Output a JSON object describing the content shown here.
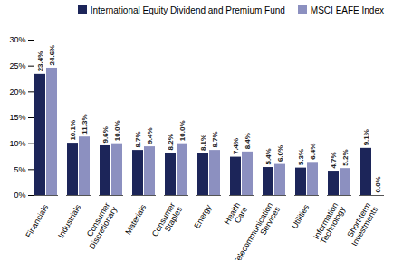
{
  "chart_data": {
    "type": "bar",
    "categories": [
      "Financials",
      "Industrials",
      "Consumer Discretionary",
      "Materials",
      "Consumer Staples",
      "Energy",
      "Health Care",
      "Telecommunication Services",
      "Utilities",
      "Information Technology",
      "Short-term Investments"
    ],
    "series": [
      {
        "name": "International Equity Dividend and Premium Fund",
        "color": "#1c2559",
        "values": [
          23.4,
          10.1,
          9.6,
          8.7,
          8.2,
          8.1,
          7.4,
          5.4,
          5.3,
          4.7,
          9.1
        ],
        "value_labels": [
          "23.4%",
          "10.1%",
          "9.6%",
          "8.7%",
          "8.2%",
          "8.1%",
          "7.4%",
          "5.4%",
          "5.3%",
          "4.7%",
          "9.1%"
        ]
      },
      {
        "name": "MSCI EAFE Index",
        "color": "#8c90c0",
        "values": [
          24.6,
          11.3,
          10.0,
          9.4,
          10.0,
          8.7,
          8.4,
          6.0,
          6.4,
          5.2,
          0.0
        ],
        "value_labels": [
          "24.6%",
          "11.3%",
          "10.0%",
          "9.4%",
          "10.0%",
          "8.7%",
          "8.4%",
          "6.0%",
          "6.4%",
          "5.2%",
          "0.0%"
        ]
      }
    ],
    "ylim": [
      0,
      30
    ],
    "yticks": [
      {
        "value": 0,
        "label": "0%"
      },
      {
        "value": 5,
        "label": "5%"
      },
      {
        "value": 10,
        "label": "10%"
      },
      {
        "value": 15,
        "label": "15%"
      },
      {
        "value": 20,
        "label": "20%"
      },
      {
        "value": 25,
        "label": "25%"
      },
      {
        "value": 30,
        "label": "30%"
      }
    ],
    "grid": false,
    "legend": "top",
    "data_labels": true
  }
}
